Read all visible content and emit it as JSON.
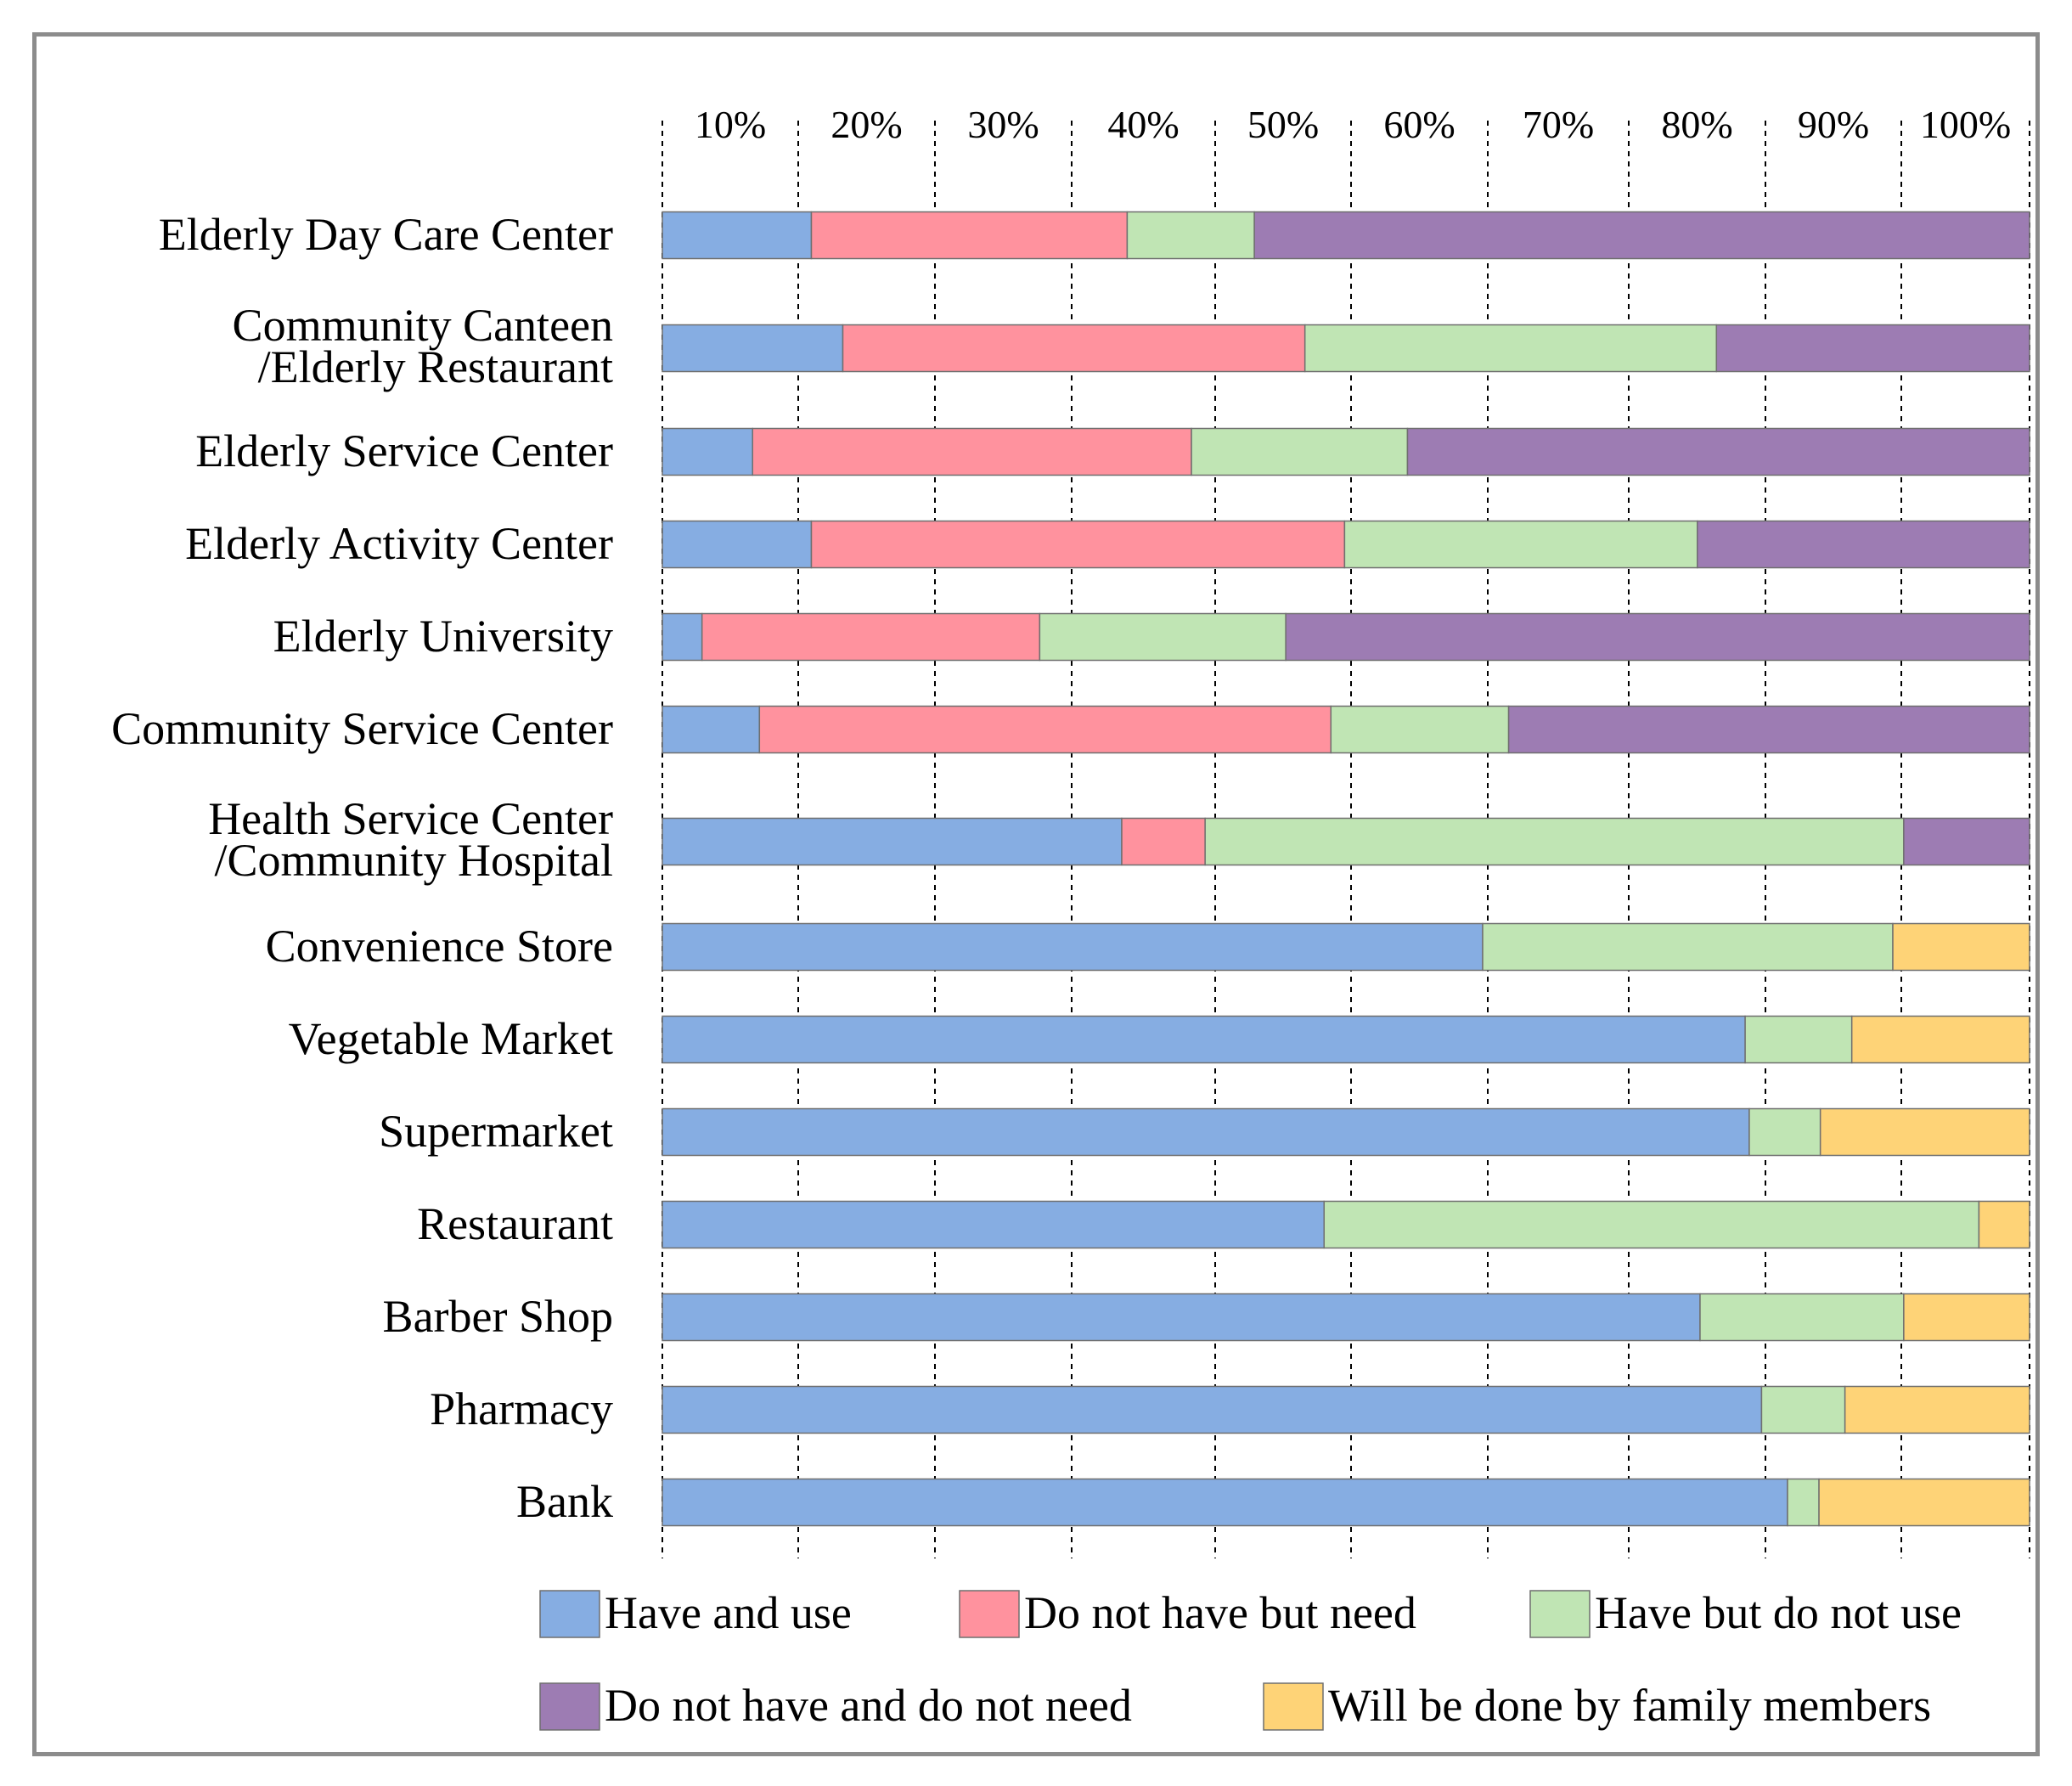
{
  "chart_data": {
    "type": "bar",
    "orientation": "horizontal",
    "stacked": "percent",
    "title": "",
    "xlabel": "",
    "ylabel": "",
    "xlim": [
      0,
      100
    ],
    "grid": "vertical dashed",
    "legend_position": "bottom",
    "tick_labels": [
      "10%",
      "20%",
      "30%",
      "40%",
      "50%",
      "60%",
      "70%",
      "80%",
      "90%",
      "100%"
    ],
    "categories": [
      [
        "Elderly Day Care Center"
      ],
      [
        "Community Canteen",
        "/Elderly Restaurant"
      ],
      [
        "Elderly Service Center"
      ],
      [
        "Elderly Activity Center"
      ],
      [
        "Elderly University"
      ],
      [
        "Community Service Center"
      ],
      [
        "Health Service Center",
        "/Community Hospital"
      ],
      [
        "Convenience Store"
      ],
      [
        "Vegetable Market"
      ],
      [
        "Supermarket"
      ],
      [
        "Restaurant"
      ],
      [
        "Barber Shop"
      ],
      [
        "Pharmacy"
      ],
      [
        "Bank"
      ]
    ],
    "series": [
      {
        "name": "Have and use",
        "color": "#86ADE2",
        "values": [
          10.9,
          13.2,
          6.6,
          10.9,
          2.9,
          7.1,
          33.6,
          60.0,
          79.2,
          79.5,
          48.4,
          75.9,
          80.4,
          82.3
        ]
      },
      {
        "name": "Do not have but need",
        "color": "#FF929E",
        "values": [
          23.1,
          33.8,
          32.1,
          39.0,
          24.7,
          41.8,
          6.1,
          0,
          0,
          0,
          0,
          0,
          0,
          0
        ]
      },
      {
        "name": "Have but do not use",
        "color": "#C0E5B4",
        "values": [
          9.3,
          30.1,
          15.8,
          25.8,
          18.0,
          13.0,
          51.1,
          30.0,
          7.8,
          5.2,
          47.9,
          14.9,
          6.1,
          2.3
        ]
      },
      {
        "name": "Do not have and do not need",
        "color": "#9D7CB3",
        "values": [
          56.7,
          22.9,
          45.5,
          24.3,
          54.4,
          38.1,
          9.2,
          0,
          0,
          0,
          0,
          0,
          0,
          0
        ]
      },
      {
        "name": "Will be done by family members",
        "color": "#FED377",
        "values": [
          0,
          0,
          0,
          0,
          0,
          0,
          0,
          10.0,
          13.0,
          15.3,
          3.7,
          9.2,
          13.5,
          15.4
        ]
      }
    ]
  }
}
